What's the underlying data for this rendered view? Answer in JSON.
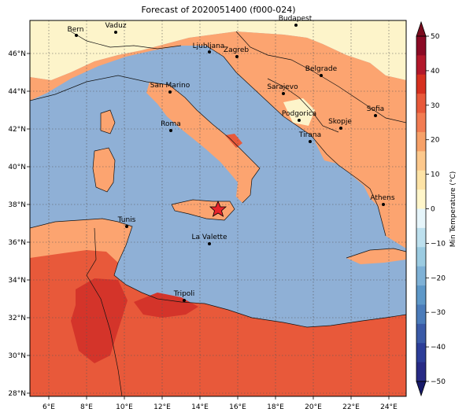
{
  "title": "Forecast of 2020051400 (f000-024)",
  "x_axis": {
    "ticks": [
      "6°E",
      "8°E",
      "10°E",
      "12°E",
      "14°E",
      "16°E",
      "18°E",
      "20°E",
      "22°E",
      "24°E"
    ]
  },
  "y_axis": {
    "ticks": [
      "46°N",
      "44°N",
      "42°N",
      "40°N",
      "38°N",
      "36°N",
      "34°N",
      "32°N",
      "30°N",
      "28°N"
    ]
  },
  "colorbar": {
    "label": "Min Temperature (°C)",
    "ticks": [
      "50",
      "40",
      "30",
      "20",
      "10",
      "0",
      "−10",
      "−20",
      "−30",
      "−40",
      "−50"
    ],
    "levels": [
      {
        "range": "40 to 50",
        "color": "#8b0a25"
      },
      {
        "range": "35 to 40",
        "color": "#b2182b"
      },
      {
        "range": "30 to 35",
        "color": "#d6301f"
      },
      {
        "range": "25 to 30",
        "color": "#e8593a"
      },
      {
        "range": "20 to 25",
        "color": "#f27c52"
      },
      {
        "range": "15 to 20",
        "color": "#f7a168"
      },
      {
        "range": "10 to 15",
        "color": "#fcc88c"
      },
      {
        "range": "5 to 10",
        "color": "#fde3a6"
      },
      {
        "range": "0 to 5",
        "color": "#fff6ca"
      },
      {
        "range": "-5 to 0",
        "color": "#e6f5fa"
      },
      {
        "range": "-10 to -5",
        "color": "#bde0ee"
      },
      {
        "range": "-15 to -10",
        "color": "#9bcbe1"
      },
      {
        "range": "-20 to -15",
        "color": "#7eb1d6"
      },
      {
        "range": "-25 to -20",
        "color": "#5e98c8"
      },
      {
        "range": "-30 to -25",
        "color": "#4b7cba"
      },
      {
        "range": "-35 to -30",
        "color": "#3a5aa7"
      },
      {
        "range": "-40 to -35",
        "color": "#2c3d98"
      },
      {
        "range": "-50 to -40",
        "color": "#272a85"
      }
    ]
  },
  "cities": [
    {
      "name": "Bern"
    },
    {
      "name": "Vaduz"
    },
    {
      "name": "Budapest"
    },
    {
      "name": "Ljubljana"
    },
    {
      "name": "Zagreb"
    },
    {
      "name": "Belgrade"
    },
    {
      "name": "San Marino"
    },
    {
      "name": "Sarajevo"
    },
    {
      "name": "Sofia"
    },
    {
      "name": "Podgorica"
    },
    {
      "name": "Skopje"
    },
    {
      "name": "Roma"
    },
    {
      "name": "Tirana"
    },
    {
      "name": "Athens"
    },
    {
      "name": "Tunis"
    },
    {
      "name": "La Valette"
    },
    {
      "name": "Tripoli"
    }
  ],
  "colors": {
    "sea": "#8fb0d6",
    "land_main": "#fca470",
    "land_north": "#fdf4ca",
    "land_hot": "#e8593a",
    "land_hotter": "#d4342a",
    "marker": "#e8232a"
  }
}
